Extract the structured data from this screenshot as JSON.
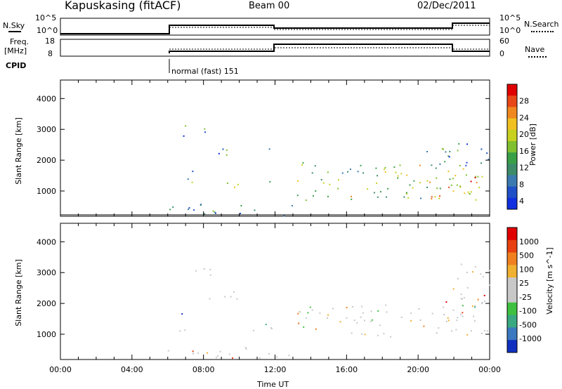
{
  "header": {
    "station": "Kapuskasing (fitACF)",
    "beam": "Beam 00",
    "date": "02/Dec/2011"
  },
  "top_panels": {
    "nsky_label": "N.Sky",
    "nsky_ticks": [
      "10^5",
      "10^0"
    ],
    "nsearch_label": "N.Search",
    "nsearch_ticks": [
      "10^5",
      "10^0"
    ],
    "freq_label": "Freq.",
    "freq_unit": "[MHz]",
    "freq_ticks": [
      "18",
      "8"
    ],
    "nave_label": "Nave",
    "nave_ticks": [
      "60",
      "0"
    ],
    "cpid_label": "CPID",
    "cpid_text": "normal (fast) 151"
  },
  "x_axis": {
    "label": "Time UT",
    "ticks": [
      "00:00",
      "04:00",
      "08:00",
      "12:00",
      "16:00",
      "20:00",
      "00:00"
    ]
  },
  "chart_data": [
    {
      "type": "heatmap",
      "panel": "power",
      "xlabel": "Time UT",
      "ylabel": "Slant Range [km]",
      "xlim": [
        0,
        24
      ],
      "ylim": [
        180,
        4600
      ],
      "y_ticks": [
        "4000",
        "3000",
        "2000",
        "1000"
      ],
      "colorbar": {
        "label": "Power [dB]",
        "ticks": [
          "28",
          "24",
          "20",
          "16",
          "12",
          "8",
          "4"
        ],
        "range": [
          0,
          30
        ],
        "colors": [
          "#1030e0",
          "#2050c8",
          "#3a7ab0",
          "#3c8c6a",
          "#3aa048",
          "#80c030",
          "#c8d020",
          "#f0c020",
          "#f08820",
          "#e84818",
          "#e00000"
        ]
      },
      "scatter_regions": [
        {
          "t_start": 6.8,
          "t_end": 8.4,
          "range_start": 2800,
          "range_end": 3200,
          "level": 0.25
        },
        {
          "t_start": 8.3,
          "t_end": 11.9,
          "range_start": 2150,
          "range_end": 2400,
          "level": 0.3
        },
        {
          "t_start": 6.6,
          "t_end": 7.4,
          "range_start": 1100,
          "range_end": 1700,
          "level": 0.35
        },
        {
          "t_start": 9.0,
          "t_end": 11.9,
          "range_start": 1100,
          "range_end": 1350,
          "level": 0.45
        },
        {
          "t_start": 13.2,
          "t_end": 24.0,
          "range_start": 700,
          "range_end": 2000,
          "level": 0.5
        },
        {
          "t_start": 20.5,
          "t_end": 24.0,
          "range_start": 800,
          "range_end": 1500,
          "level": 0.7
        },
        {
          "t_start": 20.0,
          "t_end": 24.0,
          "range_start": 1800,
          "range_end": 2600,
          "level": 0.3
        },
        {
          "t_start": 6.0,
          "t_end": 13.0,
          "range_start": 200,
          "range_end": 600,
          "level": 0.25
        }
      ]
    },
    {
      "type": "heatmap",
      "panel": "velocity",
      "xlabel": "Time UT",
      "ylabel": "Slant Range [km]",
      "xlim": [
        0,
        24
      ],
      "ylim": [
        180,
        4600
      ],
      "y_ticks": [
        "4000",
        "3000",
        "2000",
        "1000"
      ],
      "colorbar": {
        "label": "Velocity [m s^-1]",
        "ticks": [
          "1000",
          "500",
          "100",
          "25",
          "-25",
          "-100",
          "-500",
          "-1000"
        ],
        "range": [
          -1000,
          1000
        ],
        "colors": [
          "#1030c0",
          "#3a78c0",
          "#3aa880",
          "#40c040",
          "#c8c8c8",
          "#c8c8c8",
          "#f0b030",
          "#f08020",
          "#e84010",
          "#e00000"
        ]
      },
      "scatter_regions": [
        {
          "t_start": 6.8,
          "t_end": 8.4,
          "range_start": 2800,
          "range_end": 3200,
          "level": 0.5
        },
        {
          "t_start": 8.3,
          "t_end": 11.9,
          "range_start": 2150,
          "range_end": 2400,
          "level": 0.5
        },
        {
          "t_start": 6.6,
          "t_end": 7.4,
          "range_start": 1100,
          "range_end": 1700,
          "level": 0.1
        },
        {
          "t_start": 9.0,
          "t_end": 11.9,
          "range_start": 1100,
          "range_end": 1350,
          "level": 0.3
        },
        {
          "t_start": 13.2,
          "t_end": 24.0,
          "range_start": 900,
          "range_end": 2000,
          "level": 0.5
        },
        {
          "t_start": 21.5,
          "t_end": 24.0,
          "range_start": 1400,
          "range_end": 3300,
          "level": 0.8
        },
        {
          "t_start": 6.0,
          "t_end": 13.0,
          "range_start": 200,
          "range_end": 600,
          "level": 0.7
        }
      ]
    }
  ]
}
